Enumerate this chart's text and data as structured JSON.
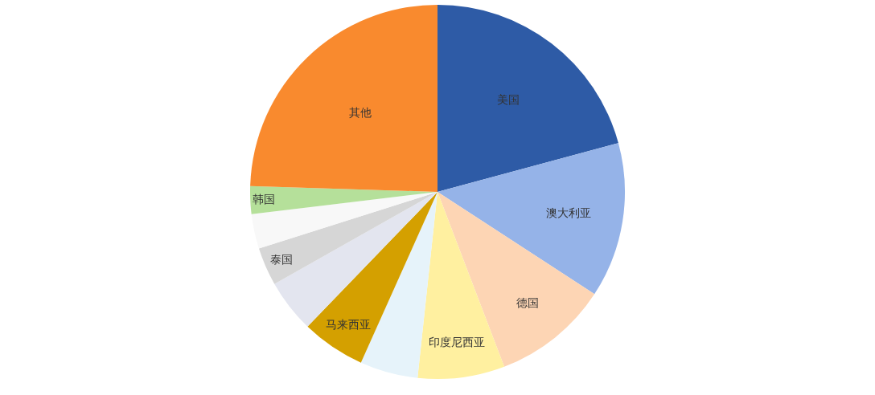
{
  "chart_data": {
    "type": "pie",
    "categories": [
      "美国",
      "澳大利亚",
      "德国",
      "印度尼西亚",
      null,
      "马来西亚",
      null,
      "泰国",
      null,
      "韩国",
      "其他"
    ],
    "values": [
      20.8,
      13.4,
      10.0,
      7.5,
      5.0,
      5.5,
      4.6,
      3.3,
      3.0,
      2.4,
      24.5
    ],
    "colors": [
      "#2e5ba6",
      "#95b3e8",
      "#fdd5b4",
      "#fff0a0",
      "#e6f3fa",
      "#d4a000",
      "#e3e5ef",
      "#d6d6d6",
      "#f8f8f8",
      "#b5e09a",
      "#f98a2e"
    ]
  }
}
